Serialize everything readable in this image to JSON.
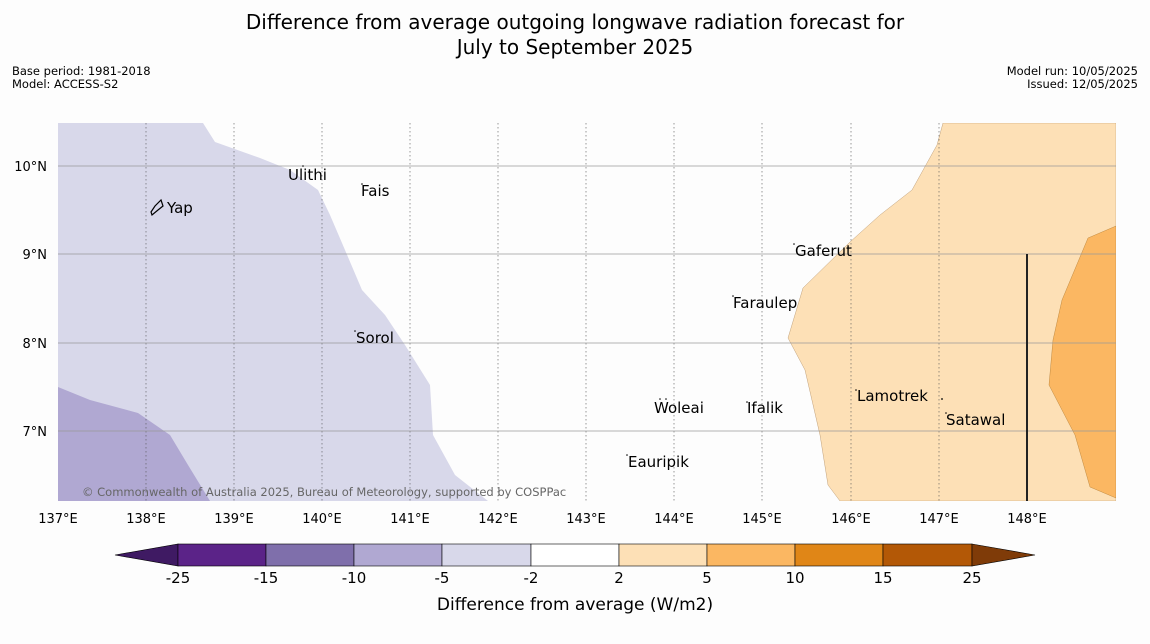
{
  "title_line1": "Difference from average outgoing longwave radiation forecast for",
  "title_line2": "July to September 2025",
  "base_period": "Base period: 1981-2018",
  "model": "Model: ACCESS-S2",
  "model_run": "Model run: 10/05/2025",
  "issued": "Issued: 12/05/2025",
  "copyright": "© Commonwealth of Australia 2025, Bureau of Meteorology, supported by COSPPac",
  "x_ticks": [
    "137°E",
    "138°E",
    "139°E",
    "140°E",
    "141°E",
    "142°E",
    "143°E",
    "144°E",
    "145°E",
    "146°E",
    "147°E",
    "148°E"
  ],
  "y_ticks": [
    "10°N",
    "9°N",
    "8°N",
    "7°N"
  ],
  "places": [
    "Yap",
    "Ulithi",
    "Fais",
    "Gaferut",
    "Faraulep",
    "Sorol",
    "Woleai",
    "Ifalik",
    "Lamotrek",
    "Satawal",
    "Eauripik"
  ],
  "colorbar": {
    "label": "Difference from average (W/m2)",
    "ticks": [
      "-25",
      "-15",
      "-10",
      "-5",
      "-2",
      "2",
      "5",
      "10",
      "15",
      "25"
    ],
    "colors": [
      "#3f1a63",
      "#5b2388",
      "#7f6fab",
      "#b0a8d2",
      "#d8d8ea",
      "#ffffff",
      "#fde0b6",
      "#fbb762",
      "#e08617",
      "#b35806",
      "#7f3b08"
    ]
  },
  "map_colors": {
    "minus5_to_minus2": "#d8d8ea",
    "minus10_to_minus5": "#b0a8d2",
    "plus2_to_plus5": "#fde0b6",
    "plus5_to_plus10": "#fbb762"
  }
}
